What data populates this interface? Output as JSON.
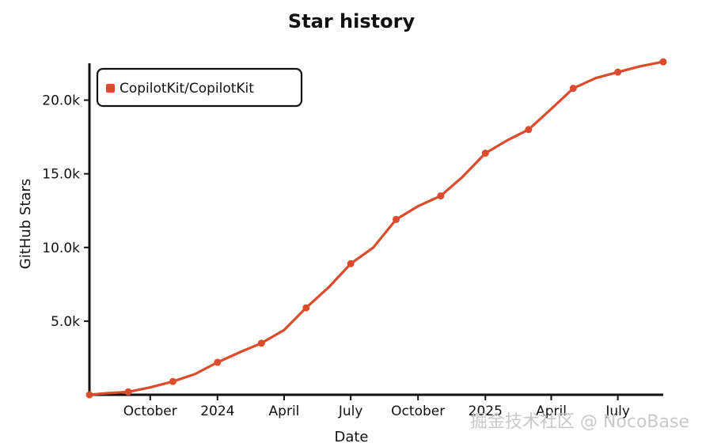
{
  "chart_data": {
    "type": "line",
    "title": "Star history",
    "xlabel": "Date",
    "ylabel": "GitHub Stars",
    "x_ticks": [
      "October",
      "2024",
      "April",
      "July",
      "October",
      "2025",
      "April",
      "July"
    ],
    "y_ticks": [
      "5.0k",
      "10.0k",
      "15.0k",
      "20.0k"
    ],
    "ylim": [
      0,
      22500
    ],
    "grid": false,
    "legend": "top-left",
    "series": [
      {
        "name": "CopilotKit/CopilotKit",
        "color": "#dd4b2d",
        "x": [
          "2023-07-10",
          "2023-08-01",
          "2023-09-01",
          "2023-10-01",
          "2023-11-01",
          "2023-12-01",
          "2024-01-01",
          "2024-02-01",
          "2024-03-01",
          "2024-04-01",
          "2024-05-01",
          "2024-06-01",
          "2024-07-01",
          "2024-08-01",
          "2024-09-01",
          "2024-10-01",
          "2024-11-01",
          "2024-12-01",
          "2025-01-01",
          "2025-02-01",
          "2025-03-01",
          "2025-04-01",
          "2025-05-01",
          "2025-06-01",
          "2025-07-01",
          "2025-08-01",
          "2025-09-01"
        ],
        "values": [
          0,
          100,
          200,
          500,
          900,
          1400,
          2200,
          2900,
          3500,
          4400,
          5900,
          7300,
          8900,
          10000,
          11900,
          12800,
          13500,
          14800,
          16400,
          17300,
          18000,
          19400,
          20800,
          21500,
          21900,
          22300,
          22600
        ]
      }
    ]
  },
  "watermark": "掘金技术社区 @ NocoBase"
}
